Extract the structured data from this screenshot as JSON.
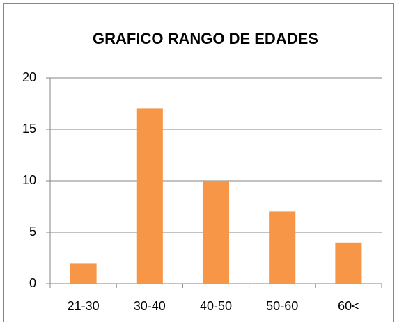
{
  "chart_data": {
    "type": "bar",
    "title": "GRAFICO RANGO DE EDADES",
    "categories": [
      "21-30",
      "30-40",
      "40-50",
      "50-60",
      "60<"
    ],
    "values": [
      2,
      17,
      10,
      7,
      4
    ],
    "color": "#f79646",
    "ylim": [
      0,
      20
    ],
    "yticks": [
      0,
      5,
      10,
      15,
      20
    ],
    "grid": true
  }
}
